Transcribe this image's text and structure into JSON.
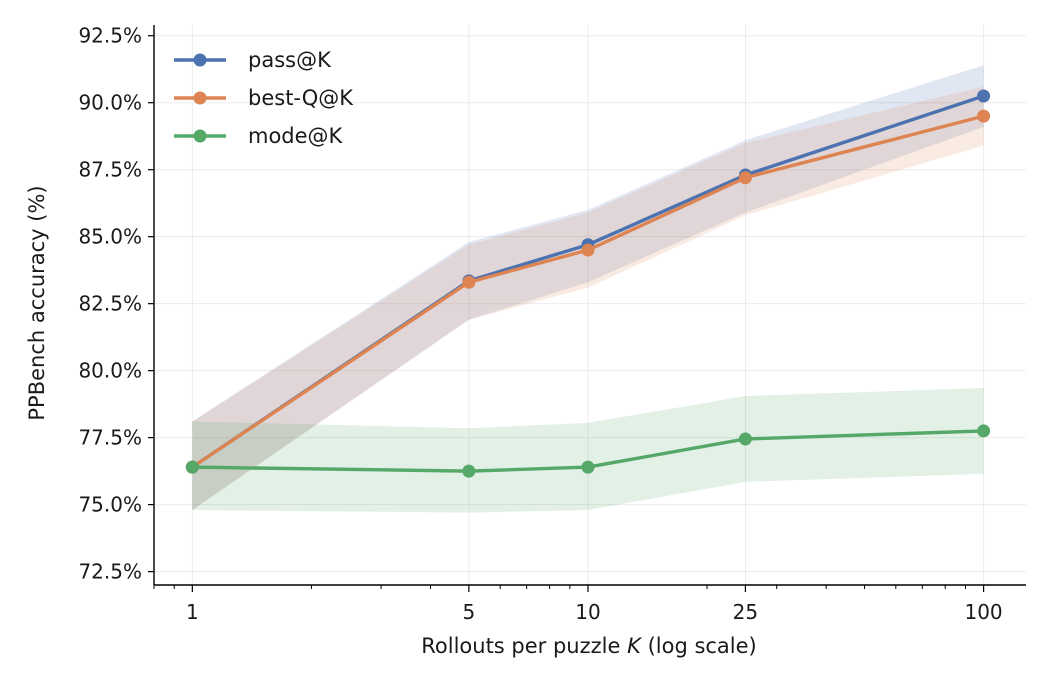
{
  "chart_data": {
    "type": "line",
    "title": "",
    "xlabel_prefix": "Rollouts per puzzle ",
    "xlabel_var": "K",
    "xlabel_suffix": " (log scale)",
    "ylabel": "PPBench accuracy (%)",
    "x_scale": "log",
    "x": [
      1,
      5,
      10,
      25,
      100
    ],
    "x_ticks": [
      "1",
      "5",
      "10",
      "25",
      "100"
    ],
    "xlim": [
      0.8,
      128
    ],
    "ylim": [
      72.0,
      92.9
    ],
    "y_ticks": [
      72.5,
      75.0,
      77.5,
      80.0,
      82.5,
      85.0,
      87.5,
      90.0,
      92.5
    ],
    "y_tick_labels": [
      "72.5%",
      "75.0%",
      "77.5%",
      "80.0%",
      "82.5%",
      "85.0%",
      "87.5%",
      "90.0%",
      "92.5%"
    ],
    "grid": true,
    "legend_position": "top-left",
    "series": [
      {
        "name": "pass@K",
        "color": "#4c72b0",
        "values": [
          76.4,
          83.35,
          84.7,
          87.3,
          90.25
        ],
        "lower": [
          74.8,
          81.9,
          83.3,
          85.9,
          89.1
        ],
        "upper": [
          78.1,
          84.8,
          86.0,
          88.6,
          91.4
        ]
      },
      {
        "name": "best-Q@K",
        "color": "#dd8452",
        "values": [
          76.4,
          83.3,
          84.5,
          87.2,
          89.5
        ],
        "lower": [
          74.8,
          81.9,
          83.1,
          85.8,
          88.4
        ],
        "upper": [
          78.1,
          84.7,
          85.9,
          88.5,
          90.6
        ]
      },
      {
        "name": "mode@K",
        "color": "#55a868",
        "values": [
          76.4,
          76.25,
          76.4,
          77.45,
          77.75
        ],
        "lower": [
          74.8,
          74.7,
          74.8,
          75.85,
          76.15
        ],
        "upper": [
          78.1,
          77.85,
          78.05,
          79.05,
          79.35
        ]
      }
    ]
  }
}
